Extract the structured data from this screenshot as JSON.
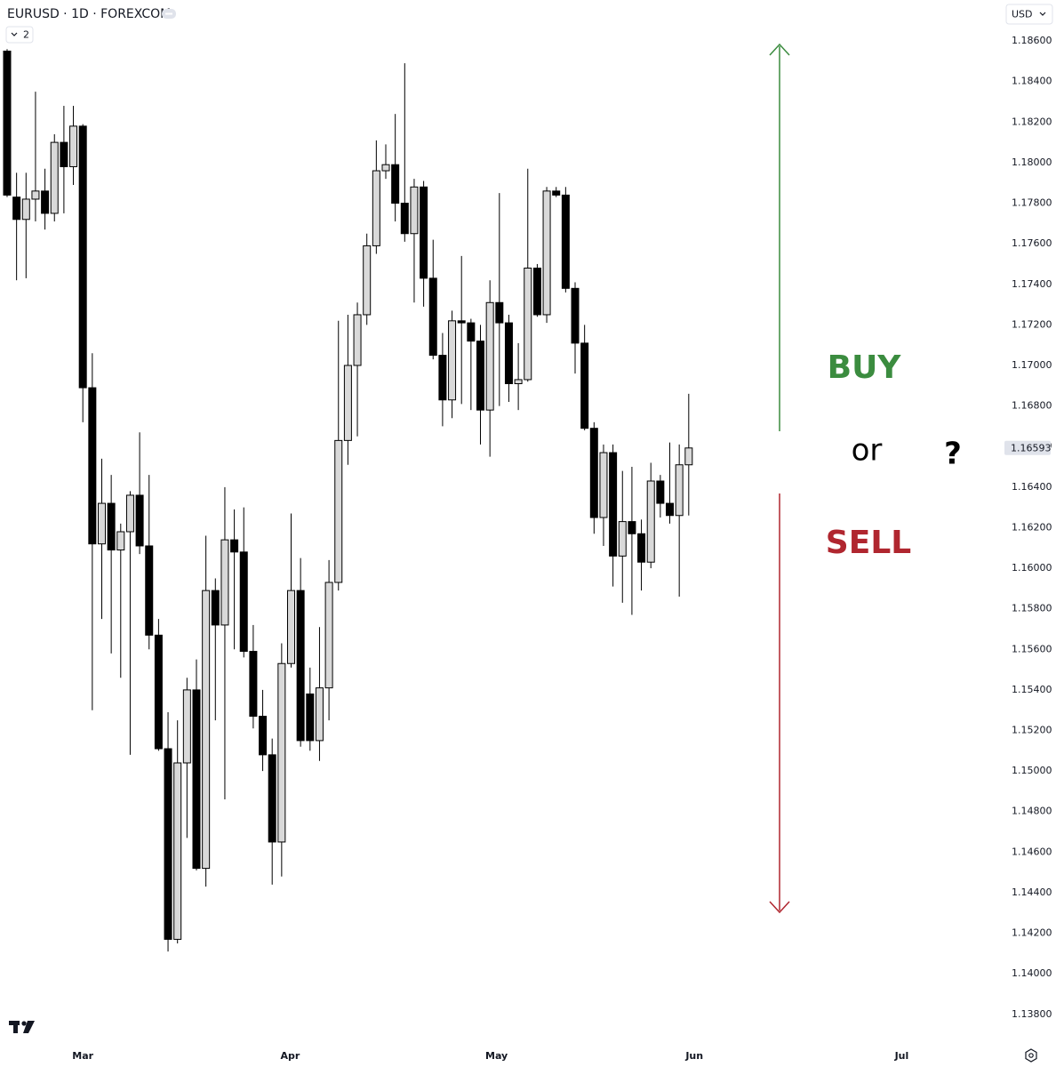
{
  "chart_data": {
    "type": "candlestick",
    "title": "EURUSD · 1D · FOREXCOM",
    "currency": "USD",
    "collapse_label": "2",
    "up_color": "#d9d9d9",
    "down_color": "#000000",
    "border_color": "#000000",
    "x": [
      0,
      1,
      2,
      3,
      4,
      5,
      6,
      7,
      8,
      9,
      10,
      11,
      12,
      13,
      14,
      15,
      16,
      17,
      18,
      19,
      20,
      21,
      22,
      23,
      24,
      25,
      26,
      27,
      28,
      29,
      30,
      31,
      32,
      33,
      34,
      35,
      36,
      37,
      38,
      39,
      40,
      41,
      42,
      43,
      44,
      45,
      46,
      47,
      48,
      49,
      50,
      51,
      52,
      53,
      54,
      55,
      56,
      57,
      58,
      59,
      60,
      61,
      62,
      63,
      64,
      65,
      66,
      67,
      68,
      69,
      70,
      71,
      72
    ],
    "open": [
      1.1855,
      1.1783,
      1.1772,
      1.1782,
      1.1786,
      1.1775,
      1.181,
      1.1798,
      1.1818,
      1.1689,
      1.1612,
      1.1632,
      1.1609,
      1.1618,
      1.1636,
      1.1611,
      1.1567,
      1.1511,
      1.1417,
      1.1504,
      1.154,
      1.1452,
      1.1589,
      1.1572,
      1.1614,
      1.1608,
      1.1559,
      1.1527,
      1.1508,
      1.1465,
      1.1553,
      1.1589,
      1.1538,
      1.1515,
      1.1541,
      1.1593,
      1.1663,
      1.17,
      1.1725,
      1.1759,
      1.1796,
      1.1799,
      1.178,
      1.1765,
      1.1788,
      1.1743,
      1.1705,
      1.1683,
      1.1722,
      1.1721,
      1.1712,
      1.1678,
      1.1731,
      1.1721,
      1.1691,
      1.1693,
      1.1748,
      1.1725,
      1.1786,
      1.1784,
      1.1738,
      1.1711,
      1.1669,
      1.1625,
      1.1657,
      1.1606,
      1.1623,
      1.1617,
      1.1603,
      1.1643,
      1.1632,
      1.1626,
      1.1651
    ],
    "high": [
      1.1856,
      1.1795,
      1.1795,
      1.1835,
      1.1797,
      1.1814,
      1.1828,
      1.1828,
      1.1819,
      1.1706,
      1.1654,
      1.1646,
      1.1622,
      1.1638,
      1.1667,
      1.1646,
      1.1575,
      1.1529,
      1.1525,
      1.1546,
      1.1555,
      1.1616,
      1.1595,
      1.164,
      1.1629,
      1.163,
      1.1572,
      1.154,
      1.1516,
      1.1563,
      1.1627,
      1.1605,
      1.1551,
      1.1571,
      1.1604,
      1.1722,
      1.1725,
      1.1731,
      1.1765,
      1.1811,
      1.1809,
      1.1824,
      1.1849,
      1.1792,
      1.1791,
      1.1762,
      1.1716,
      1.1727,
      1.1754,
      1.1723,
      1.172,
      1.1742,
      1.1785,
      1.1725,
      1.1711,
      1.1797,
      1.175,
      1.1788,
      1.1788,
      1.1788,
      1.1741,
      1.172,
      1.1672,
      1.1661,
      1.1661,
      1.1648,
      1.165,
      1.1624,
      1.1652,
      1.1646,
      1.1662,
      1.1661,
      1.1686
    ],
    "low": [
      1.1783,
      1.1742,
      1.1743,
      1.1771,
      1.1767,
      1.1771,
      1.1775,
      1.1789,
      1.1672,
      1.153,
      1.1575,
      1.1558,
      1.1546,
      1.1508,
      1.1607,
      1.156,
      1.151,
      1.1411,
      1.1415,
      1.1467,
      1.1451,
      1.1443,
      1.1525,
      1.1486,
      1.156,
      1.1556,
      1.1521,
      1.15,
      1.1444,
      1.1448,
      1.1551,
      1.1512,
      1.151,
      1.1505,
      1.1525,
      1.1589,
      1.1651,
      1.1665,
      1.172,
      1.1755,
      1.1792,
      1.1771,
      1.1761,
      1.1731,
      1.1729,
      1.1703,
      1.167,
      1.1674,
      1.1681,
      1.1678,
      1.1661,
      1.1655,
      1.168,
      1.1682,
      1.1678,
      1.1692,
      1.1724,
      1.1721,
      1.1783,
      1.1736,
      1.1696,
      1.1668,
      1.1617,
      1.1611,
      1.1591,
      1.1583,
      1.1577,
      1.1589,
      1.16,
      1.1625,
      1.1622,
      1.1586,
      1.1626
    ],
    "close": [
      1.1784,
      1.1772,
      1.1782,
      1.1786,
      1.1775,
      1.181,
      1.1798,
      1.1818,
      1.1689,
      1.1612,
      1.1632,
      1.1609,
      1.1618,
      1.1636,
      1.1611,
      1.1567,
      1.1511,
      1.1417,
      1.1504,
      1.154,
      1.1452,
      1.1589,
      1.1572,
      1.1614,
      1.1608,
      1.1559,
      1.1527,
      1.1508,
      1.1465,
      1.1553,
      1.1589,
      1.1515,
      1.1515,
      1.1541,
      1.1593,
      1.1663,
      1.17,
      1.1725,
      1.1759,
      1.1796,
      1.1799,
      1.178,
      1.1765,
      1.1788,
      1.1743,
      1.1705,
      1.1683,
      1.1722,
      1.1721,
      1.1712,
      1.1678,
      1.1731,
      1.1721,
      1.1691,
      1.1693,
      1.1748,
      1.1725,
      1.1786,
      1.1784,
      1.1738,
      1.1711,
      1.1669,
      1.1625,
      1.1657,
      1.1606,
      1.1623,
      1.1617,
      1.1603,
      1.1643,
      1.1632,
      1.1626,
      1.1651,
      1.16593
    ],
    "xlim": [
      -0.75,
      104.88
    ],
    "xticks": [
      {
        "value": 8.0,
        "label": "Mar"
      },
      {
        "value": 29.9,
        "label": "Apr"
      },
      {
        "value": 51.7,
        "label": "May"
      },
      {
        "value": 72.6,
        "label": "Jun"
      },
      {
        "value": 94.5,
        "label": "Jul"
      }
    ],
    "ylim": [
      1.13672,
      1.18802
    ],
    "yticks": [
      {
        "value": 1.138,
        "label": "1.13800"
      },
      {
        "value": 1.14,
        "label": "1.14000"
      },
      {
        "value": 1.142,
        "label": "1.14200"
      },
      {
        "value": 1.144,
        "label": "1.14400"
      },
      {
        "value": 1.146,
        "label": "1.14600"
      },
      {
        "value": 1.148,
        "label": "1.14800"
      },
      {
        "value": 1.15,
        "label": "1.15000"
      },
      {
        "value": 1.152,
        "label": "1.15200"
      },
      {
        "value": 1.154,
        "label": "1.15400"
      },
      {
        "value": 1.156,
        "label": "1.15600"
      },
      {
        "value": 1.158,
        "label": "1.15800"
      },
      {
        "value": 1.16,
        "label": "1.16000"
      },
      {
        "value": 1.162,
        "label": "1.16200"
      },
      {
        "value": 1.164,
        "label": "1.16400"
      },
      {
        "value": 1.166,
        "label": "1.16600"
      },
      {
        "value": 1.168,
        "label": "1.16800"
      },
      {
        "value": 1.17,
        "label": "1.17000"
      },
      {
        "value": 1.172,
        "label": "1.17200"
      },
      {
        "value": 1.174,
        "label": "1.17400"
      },
      {
        "value": 1.176,
        "label": "1.17600"
      },
      {
        "value": 1.178,
        "label": "1.17800"
      },
      {
        "value": 1.18,
        "label": "1.18000"
      },
      {
        "value": 1.182,
        "label": "1.18200"
      },
      {
        "value": 1.184,
        "label": "1.18400"
      },
      {
        "value": 1.186,
        "label": "1.18600"
      }
    ],
    "annotations": [
      {
        "text": "BUY",
        "color": "#3b8c3f"
      },
      {
        "text": "or",
        "color": "#000000"
      },
      {
        "text": "?",
        "color": "#000000"
      },
      {
        "text": "SELL",
        "color": "#b0262f"
      }
    ]
  }
}
